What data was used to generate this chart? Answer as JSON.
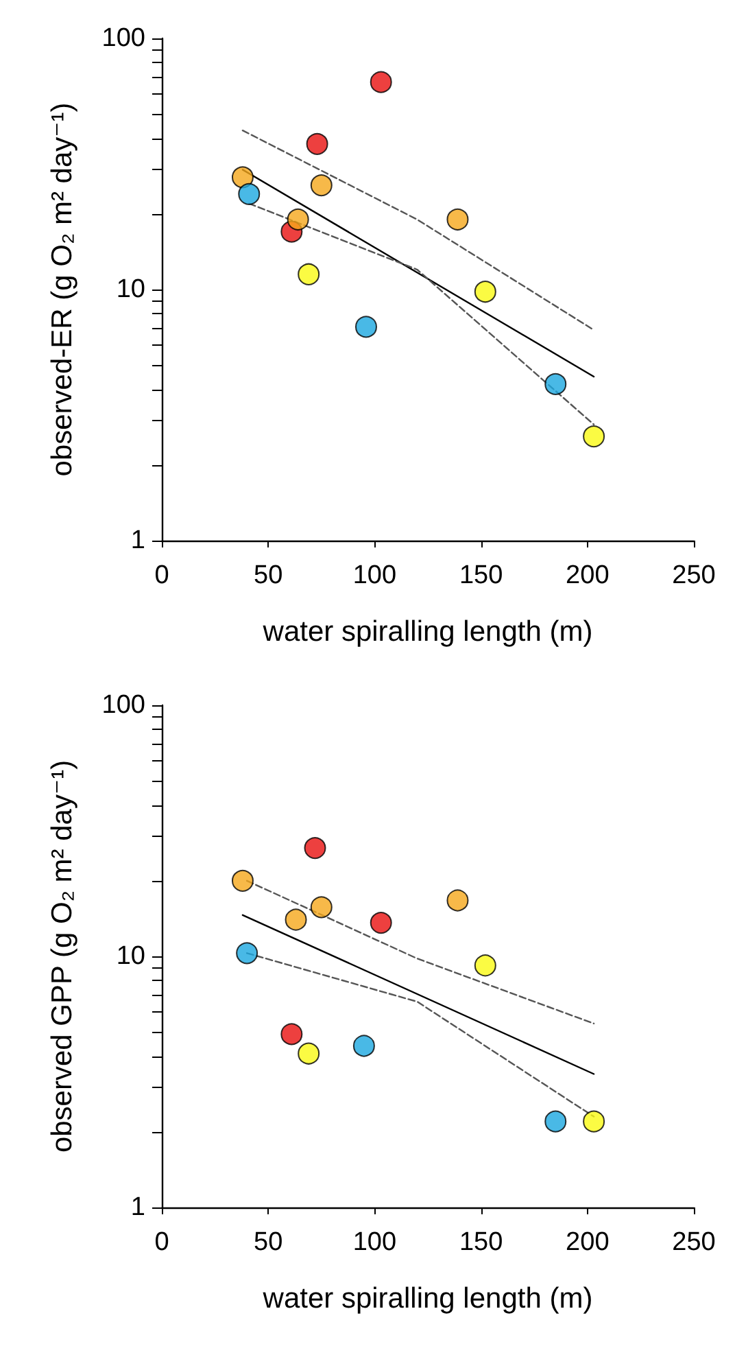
{
  "chart_data": [
    {
      "type": "scatter",
      "xlabel": "water spiralling length (m)",
      "ylabel": "observed-ER (g O₂ m² day⁻¹)",
      "log": "y",
      "marker": "circle",
      "xlim": [
        0,
        250
      ],
      "xticks": [
        0,
        50,
        100,
        150,
        200,
        250
      ],
      "ylim": [
        1,
        100
      ],
      "yticks": [
        1,
        {
          "value": 2,
          "label": null
        },
        {
          "value": 3,
          "label": null
        },
        {
          "value": 4,
          "label": null
        },
        {
          "value": 5,
          "label": null
        },
        {
          "value": 6,
          "label": null
        },
        {
          "value": 7,
          "label": null
        },
        {
          "value": 8,
          "label": null
        },
        {
          "value": 9,
          "label": null
        },
        10,
        {
          "value": 20,
          "label": null
        },
        {
          "value": 30,
          "label": null
        },
        {
          "value": 40,
          "label": null
        },
        {
          "value": 50,
          "label": null
        },
        {
          "value": 60,
          "label": null
        },
        {
          "value": 70,
          "label": null
        },
        {
          "value": 80,
          "label": null
        },
        {
          "value": 90,
          "label": null
        },
        100
      ],
      "series": [
        {
          "color": "#e8100f",
          "x": [
            61,
            73,
            103
          ],
          "values": [
            17,
            38,
            67
          ]
        },
        {
          "color": "#f5a81b",
          "x": [
            38,
            64,
            75,
            139
          ],
          "values": [
            28,
            19,
            26,
            19
          ]
        },
        {
          "color": "#fafa14",
          "x": [
            69,
            152,
            203
          ],
          "values": [
            11.5,
            9.8,
            2.6
          ]
        },
        {
          "color": "#1ba8e0",
          "x": [
            41,
            96,
            185
          ],
          "values": [
            24,
            7.1,
            4.2
          ]
        },
        {
          "type": "line",
          "color": "#000000",
          "line_style": "solid",
          "marker": "none",
          "x": [
            38,
            203
          ],
          "values": [
            30,
            4.5
          ]
        },
        {
          "type": "line",
          "color": "#555555",
          "line_style": "dashed",
          "marker": "none",
          "x": [
            38,
            120,
            203
          ],
          "values": [
            43,
            19,
            6.9
          ]
        },
        {
          "type": "line",
          "color": "#555555",
          "line_style": "dashed",
          "marker": "none",
          "x": [
            41,
            120,
            203
          ],
          "values": [
            22,
            12,
            2.9
          ]
        }
      ]
    },
    {
      "type": "scatter",
      "xlabel": "water spiralling length (m)",
      "ylabel": "observed GPP (g O₂ m² day⁻¹)",
      "log": "y",
      "marker": "circle",
      "xlim": [
        0,
        250
      ],
      "xticks": [
        0,
        50,
        100,
        150,
        200,
        250
      ],
      "ylim": [
        1,
        100
      ],
      "yticks": [
        1,
        {
          "value": 2,
          "label": null
        },
        {
          "value": 3,
          "label": null
        },
        {
          "value": 4,
          "label": null
        },
        {
          "value": 5,
          "label": null
        },
        {
          "value": 6,
          "label": null
        },
        {
          "value": 7,
          "label": null
        },
        {
          "value": 8,
          "label": null
        },
        {
          "value": 9,
          "label": null
        },
        10,
        {
          "value": 20,
          "label": null
        },
        {
          "value": 30,
          "label": null
        },
        {
          "value": 40,
          "label": null
        },
        {
          "value": 50,
          "label": null
        },
        {
          "value": 60,
          "label": null
        },
        {
          "value": 70,
          "label": null
        },
        {
          "value": 80,
          "label": null
        },
        {
          "value": 90,
          "label": null
        },
        100
      ],
      "series": [
        {
          "color": "#e8100f",
          "x": [
            61,
            72,
            103
          ],
          "values": [
            4.9,
            27,
            13.6
          ]
        },
        {
          "color": "#f5a81b",
          "x": [
            38,
            63,
            75,
            139
          ],
          "values": [
            20,
            14,
            15.7,
            16.7
          ]
        },
        {
          "color": "#fafa14",
          "x": [
            69,
            152,
            203
          ],
          "values": [
            4.1,
            9.2,
            2.2
          ]
        },
        {
          "color": "#1ba8e0",
          "x": [
            40,
            95,
            185
          ],
          "values": [
            10.3,
            4.4,
            2.2
          ]
        },
        {
          "type": "line",
          "color": "#000000",
          "line_style": "solid",
          "marker": "none",
          "x": [
            38,
            203
          ],
          "values": [
            14.6,
            3.4
          ]
        },
        {
          "type": "line",
          "color": "#555555",
          "line_style": "dashed",
          "marker": "none",
          "x": [
            40,
            120,
            203
          ],
          "values": [
            20,
            9.8,
            5.4
          ]
        },
        {
          "type": "line",
          "color": "#555555",
          "line_style": "dashed",
          "marker": "none",
          "x": [
            40,
            120,
            203
          ],
          "values": [
            10.3,
            6.6,
            2.3
          ]
        }
      ]
    }
  ]
}
